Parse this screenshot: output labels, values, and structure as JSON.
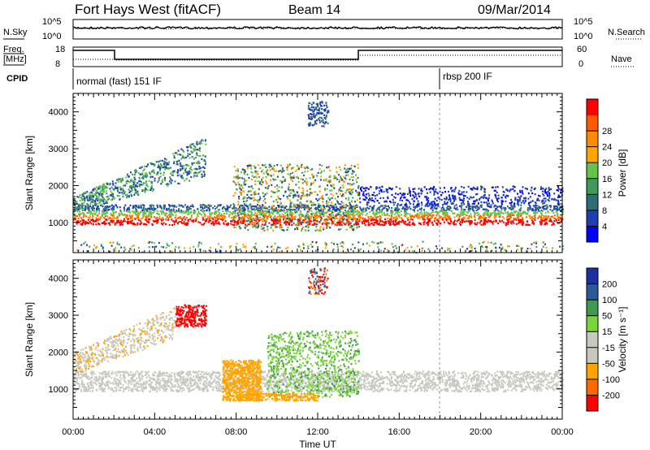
{
  "header": {
    "station": "Fort Hays West (fitACF)",
    "beam": "Beam 14",
    "date": "09/Mar/2014"
  },
  "strips": {
    "nsky": {
      "label": "N.Sky",
      "right_label": "N.Search",
      "ticks": [
        "10^5",
        "10^0"
      ]
    },
    "freq": {
      "label_line1": "Freq.",
      "label_line2": "[MHz]",
      "left_ticks": [
        "18",
        "8"
      ],
      "right_label": "Nave",
      "right_ticks": [
        "60",
        "0"
      ]
    },
    "cpid": {
      "label": "CPID",
      "segments": [
        "normal (fast) 151 IF",
        "rbsp 200 IF"
      ]
    }
  },
  "colorbars": {
    "power": {
      "title": "Power [dB]",
      "colors": [
        "#0000ff",
        "#1f3fb0",
        "#2e6d77",
        "#3f9a5a",
        "#64c34a",
        "#ffa500",
        "#ff8c00",
        "#ff5a00",
        "#ff0000"
      ],
      "tick_labels": [
        "4",
        "8",
        "12",
        "16",
        "20",
        "24",
        "28"
      ]
    },
    "velocity": {
      "title": "Velocity [m s⁻¹]",
      "colors": [
        "#ff0000",
        "#ff6a00",
        "#ffa500",
        "#c8c8c0",
        "#c8c8c0",
        "#7cd43c",
        "#3e9a4e",
        "#2b5a9a",
        "#1f2fa0"
      ],
      "tick_labels": [
        "-200",
        "-100",
        "-50",
        "-15",
        "15",
        "50",
        "100",
        "200"
      ]
    }
  },
  "chart_data": [
    {
      "type": "heatmap",
      "title": "Power",
      "xlabel": "",
      "ylabel": "Slant Range [km]",
      "xlim": [
        "00:00",
        "24:00"
      ],
      "ylim": [
        180,
        4500
      ],
      "yticks": [
        "1000",
        "2000",
        "3000",
        "4000"
      ],
      "colorbar": "Power [dB]",
      "features": [
        {
          "name": "near-range ionospheric echoes",
          "time": [
            "00:00",
            "24:00"
          ],
          "range_km": [
            900,
            1500
          ],
          "power_db": 28
        },
        {
          "name": "rising band",
          "time": [
            "00:00",
            "06:30"
          ],
          "range_km": [
            1300,
            3200
          ],
          "power_db": 12
        },
        {
          "name": "midday arch",
          "time": [
            "08:00",
            "14:00"
          ],
          "range_km": [
            800,
            2600
          ],
          "power_db": 16
        },
        {
          "name": "high-range patch",
          "time": [
            "11:30",
            "12:30"
          ],
          "range_km": [
            3600,
            4300
          ],
          "power_db": 8
        }
      ]
    },
    {
      "type": "heatmap",
      "title": "Velocity",
      "xlabel": "Time UT",
      "ylabel": "Slant Range [km]",
      "xlim": [
        "00:00",
        "24:00"
      ],
      "ylim": [
        180,
        4500
      ],
      "xticks": [
        "00:00",
        "04:00",
        "08:00",
        "12:00",
        "16:00",
        "20:00",
        "00:00"
      ],
      "yticks": [
        "1000",
        "2000",
        "3000",
        "4000"
      ],
      "colorbar": "Velocity [m s⁻¹]",
      "features": [
        {
          "name": "ground scatter band",
          "time": [
            "00:00",
            "24:00"
          ],
          "range_km": [
            900,
            1500
          ],
          "velocity": 0
        },
        {
          "name": "evening negative-velocity band",
          "time": [
            "05:00",
            "06:30"
          ],
          "range_km": [
            2700,
            3300
          ],
          "velocity": -200
        },
        {
          "name": "morning negative-velocity patch",
          "time": [
            "07:30",
            "09:00"
          ],
          "range_km": [
            700,
            1800
          ],
          "velocity": -50
        },
        {
          "name": "midday positive-velocity arch",
          "time": [
            "09:30",
            "14:00"
          ],
          "range_km": [
            800,
            2600
          ],
          "velocity": 50
        }
      ]
    }
  ]
}
